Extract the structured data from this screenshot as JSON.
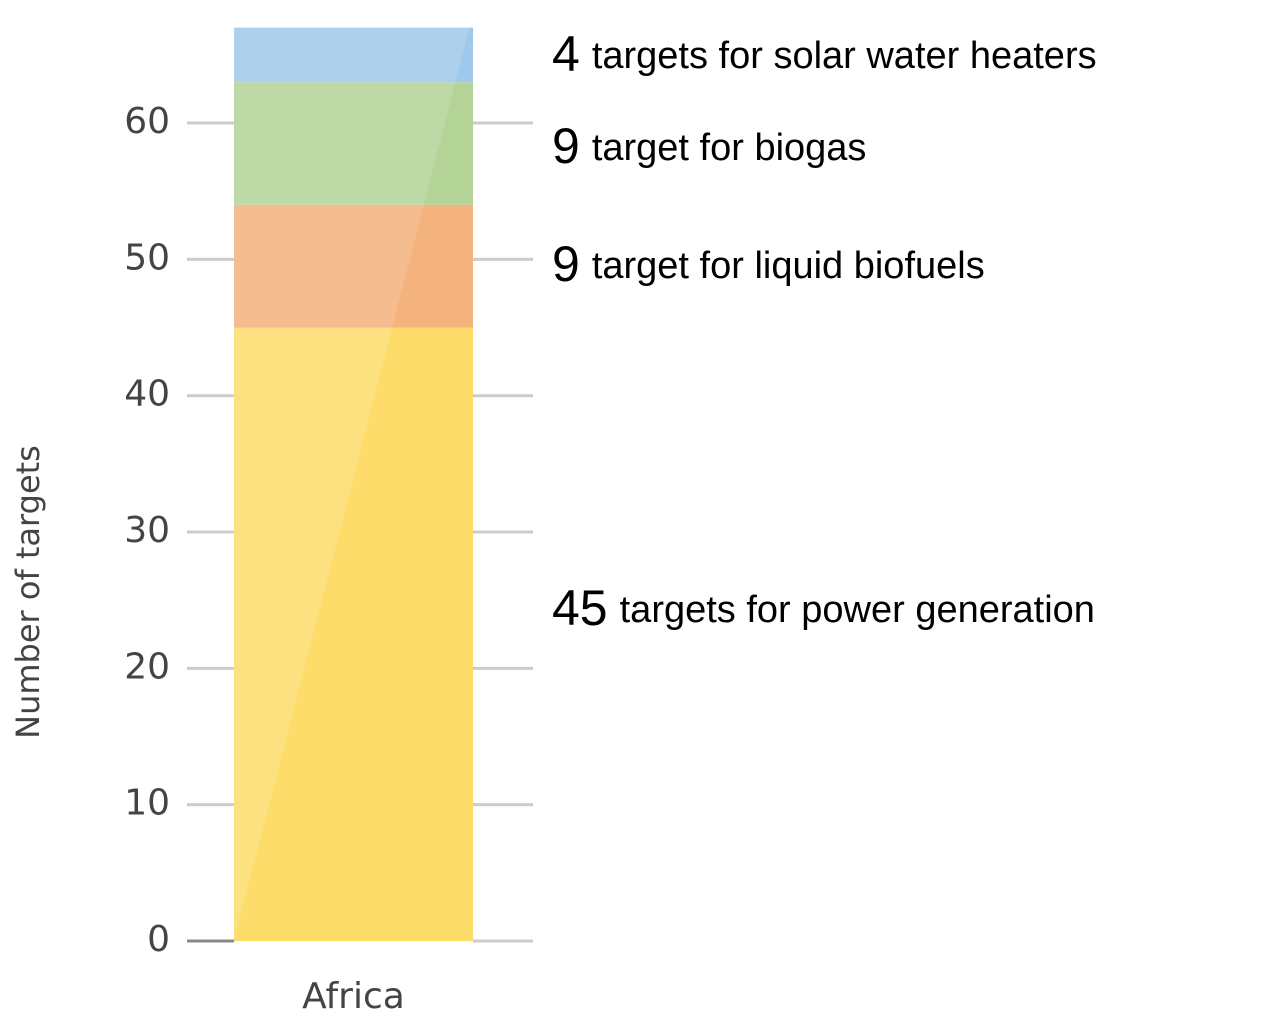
{
  "chart_data": {
    "type": "stacked-bar",
    "y_label": "Number of targets",
    "categories": [
      "Africa"
    ],
    "series": [
      {
        "name": "targets for power generation",
        "color": "#fddc6a",
        "values": [
          45
        ],
        "value_labels": [
          "45"
        ]
      },
      {
        "name": "target for liquid biofuels",
        "color": "#f4b27c",
        "values": [
          9
        ],
        "value_labels": [
          "9"
        ]
      },
      {
        "name": "target for biogas",
        "color": "#b4d397",
        "values": [
          9
        ],
        "value_labels": [
          "9"
        ]
      },
      {
        "name": "targets for solar water heaters",
        "color": "#9fc8ea",
        "values": [
          4
        ],
        "value_labels": [
          "4"
        ]
      }
    ],
    "ylim": [
      0,
      68
    ],
    "yticks": [
      0,
      10,
      20,
      30,
      40,
      50,
      60
    ],
    "grid": true
  }
}
